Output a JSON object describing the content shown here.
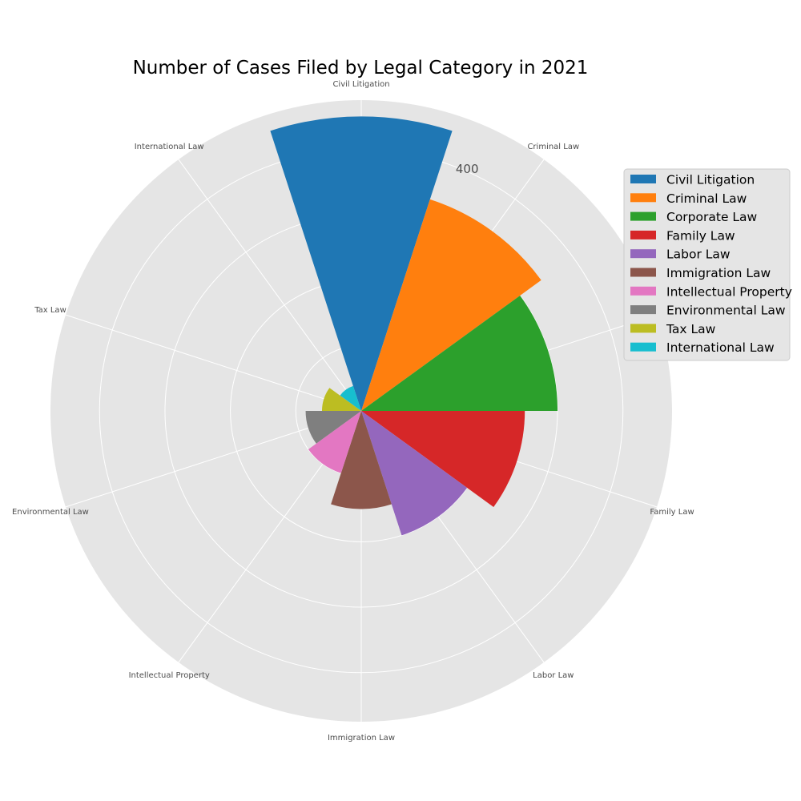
{
  "chart_data": {
    "type": "polar-bar",
    "title": "Number of Cases Filed by Legal Category in 2021",
    "categories": [
      "Civil Litigation",
      "Criminal Law",
      "Corporate Law",
      "Family Law",
      "Labor Law",
      "Immigration Law",
      "Intellectual Property",
      "Environmental Law",
      "Tax Law",
      "International Law"
    ],
    "values": [
      450,
      340,
      300,
      250,
      200,
      150,
      100,
      85,
      60,
      40
    ],
    "colors": [
      "#1f77b4",
      "#ff7f0e",
      "#2ca02c",
      "#d62728",
      "#9467bd",
      "#8c564b",
      "#e377c2",
      "#7f7f7f",
      "#bcbd22",
      "#17becf"
    ],
    "radial_ticks": [
      100,
      200,
      300,
      400
    ],
    "radial_tick_labels_shown": [
      "400"
    ],
    "rmax": 475,
    "grid": true,
    "legend": {
      "position": "right",
      "labels": [
        "Civil Litigation",
        "Criminal Law",
        "Corporate Law",
        "Family Law",
        "Labor Law",
        "Immigration Law",
        "Intellectual Property",
        "Environmental Law",
        "Tax Law",
        "International Law"
      ]
    }
  }
}
